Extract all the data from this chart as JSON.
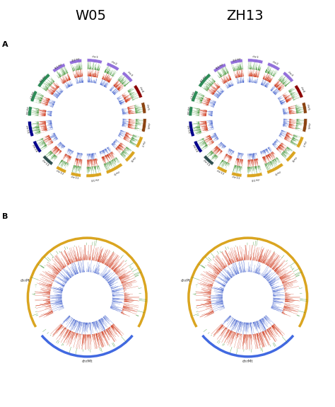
{
  "title_left": "W05",
  "title_right": "ZH13",
  "label_A": "A",
  "label_B": "B",
  "bg_color": "#ffffff",
  "chr_colors_A": {
    "chr1": "#6a3d9a",
    "chr2": "#6a3d9a",
    "chr3": "#6a3d9a",
    "chr4": "#8b0000",
    "chr5": "#8b4513",
    "chr6": "#8b4513",
    "chr7": "#daa520",
    "chr8": "#daa520",
    "chr9": "#daa520",
    "chr10": "#daa520",
    "chr11": "#daa520",
    "chr12": "#daa520",
    "chr13": "#2f4f4f",
    "chr14": "#00008b",
    "chr15": "#00008b",
    "chr16": "#2e8b57",
    "chr17": "#2e8b57",
    "chr18": "#2e8b57",
    "chr19": "#6a3d9a",
    "chr20": "#6a3d9a"
  },
  "n_chr_A": 20,
  "outer_ring_color_A": "#2e8b22",
  "mid_ring_color_A": "#cc2200",
  "inner_ring_color_A": "#3355cc",
  "outer_ring_color_B_pt": "#daa520",
  "outer_ring_color_B_mt": "#4169e1",
  "ring_color_B_red": "#cc2200",
  "ring_color_B_blue": "#3355cc",
  "ring_color_B_green": "#2e8b22",
  "chrPt_label": "chrPt",
  "chrMt_label": "chrMt"
}
